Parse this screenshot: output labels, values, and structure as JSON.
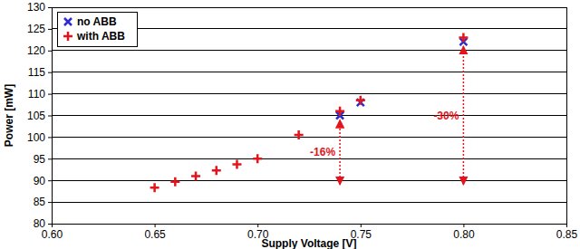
{
  "chart_data": {
    "type": "scatter",
    "x_label": "Supply Voltage [V]",
    "y_label": "Power [mW]",
    "xlim": [
      0.6,
      0.85
    ],
    "ylim": [
      80,
      130
    ],
    "xticks": [
      {
        "value": 0.6,
        "label": "0.60"
      },
      {
        "value": 0.65,
        "label": "0.65"
      },
      {
        "value": 0.7,
        "label": "0.70"
      },
      {
        "value": 0.75,
        "label": "0.75"
      },
      {
        "value": 0.8,
        "label": "0.80"
      },
      {
        "value": 0.85,
        "label": "0.85"
      }
    ],
    "yticks": [
      80,
      85,
      90,
      95,
      100,
      105,
      110,
      115,
      120,
      125,
      130
    ],
    "grid": true,
    "legend": "upper-left",
    "series": [
      {
        "name": "no ABB",
        "color": "#2b2bd0",
        "marker": "x",
        "x": [
          0.74,
          0.75,
          0.8
        ],
        "values": [
          105,
          108,
          122
        ]
      },
      {
        "name": "with ABB",
        "color": "#e3141b",
        "marker": "plus",
        "x": [
          0.65,
          0.66,
          0.67,
          0.68,
          0.69,
          0.7,
          0.72,
          0.74,
          0.75,
          0.8
        ],
        "values": [
          88.3,
          89.7,
          91,
          92.3,
          93.7,
          95,
          100.5,
          106,
          108.5,
          123
        ]
      }
    ],
    "annotations": [
      {
        "text": "-16%",
        "x": 0.74,
        "y_from": 89,
        "y_to": 104
      },
      {
        "text": "-30%",
        "x": 0.8,
        "y_from": 89,
        "y_to": 121
      }
    ]
  }
}
